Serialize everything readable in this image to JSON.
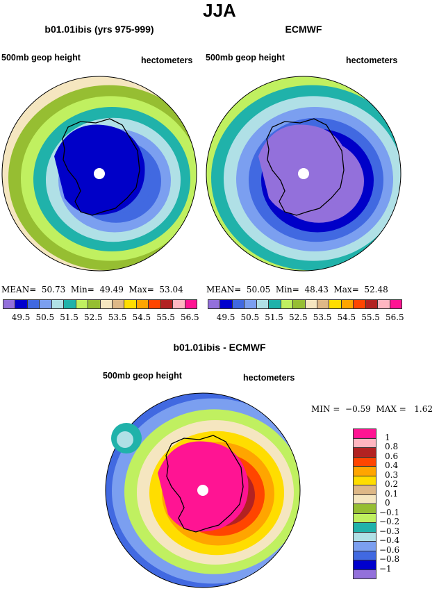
{
  "title": "JJA",
  "panels": [
    {
      "title": "b01.01ibis (yrs 975-999)",
      "variable": "500mb geop height",
      "units": "hectometers",
      "stats": {
        "mean_label": "MEAN=",
        "mean": "50.73",
        "min_label": "Min=",
        "min": "49.49",
        "max_label": "Max=",
        "max": "53.04"
      },
      "bands": [
        "#f5e6c0",
        "#96be32",
        "#c0f060",
        "#20b2aa",
        "#b0e0e6",
        "#7b9ff0",
        "#4169e1",
        "#4169e1"
      ],
      "center_blob": "#0000c8"
    },
    {
      "title": "ECMWF",
      "variable": "500mb geop height",
      "units": "hectometers",
      "stats": {
        "mean_label": "MEAN=",
        "mean": "50.05",
        "min_label": "Min=",
        "min": "48.43",
        "max_label": "Max=",
        "max": "52.48"
      },
      "bands": [
        "#c0f060",
        "#20b2aa",
        "#b0e0e6",
        "#7b9ff0",
        "#4169e1",
        "#0000c8",
        "#9370db",
        "#9370db"
      ],
      "center_blob": "#9370db"
    }
  ],
  "colorbar": {
    "colors": [
      "#9370db",
      "#0000cd",
      "#4169e1",
      "#7b9ff0",
      "#b0e0e6",
      "#20b2aa",
      "#c0f060",
      "#96be32",
      "#f5e6c0",
      "#deb887",
      "#ffdd00",
      "#ffa500",
      "#ff4500",
      "#b22222",
      "#ffb6c1",
      "#ff1493"
    ],
    "labels": [
      "49.5",
      "50.5",
      "51.5",
      "52.5",
      "53.5",
      "54.5",
      "55.5",
      "56.5"
    ]
  },
  "diff": {
    "title": "b01.01ibis - ECMWF",
    "variable": "500mb geop height",
    "units": "hectometers",
    "min_label": "MIN =",
    "min": "−0.59",
    "max_label": "MAX =",
    "max": "1.62",
    "colorbar_colors": [
      "#ff1493",
      "#ffb6c1",
      "#b22222",
      "#ff4500",
      "#ffa500",
      "#ffdd00",
      "#deb887",
      "#f5e6c0",
      "#96be32",
      "#c0f060",
      "#20b2aa",
      "#b0e0e6",
      "#7b9ff0",
      "#4169e1",
      "#0000cd",
      "#9370db"
    ],
    "colorbar_labels": [
      "1",
      "0.8",
      "0.6",
      "0.4",
      "0.3",
      "0.2",
      "0.1",
      "0",
      "−0.1",
      "−0.2",
      "−0.3",
      "−0.4",
      "−0.6",
      "−0.8",
      "−1"
    ]
  }
}
